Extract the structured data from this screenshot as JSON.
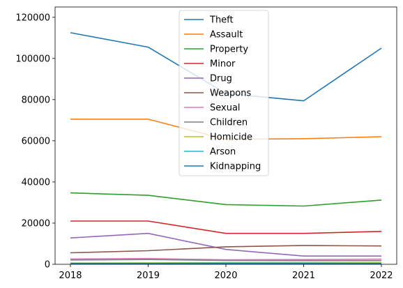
{
  "chart_data": {
    "type": "line",
    "title": "",
    "xlabel": "",
    "ylabel": "",
    "x": [
      "2018",
      "2019",
      "2020",
      "2021",
      "2022"
    ],
    "ylim": [
      0,
      125000
    ],
    "yticks": [
      0,
      20000,
      40000,
      60000,
      80000,
      100000,
      120000
    ],
    "ytick_labels": [
      "0",
      "20000",
      "40000",
      "60000",
      "80000",
      "100000",
      "120000"
    ],
    "grid": false,
    "legend_position": "upper-center",
    "series": [
      {
        "name": "Theft",
        "color": "#1f77b4",
        "values": [
          112500,
          105500,
          83000,
          79400,
          105000
        ]
      },
      {
        "name": "Assault",
        "color": "#ff7f0e",
        "values": [
          70500,
          70500,
          60700,
          61000,
          62000
        ]
      },
      {
        "name": "Property",
        "color": "#2ca02c",
        "values": [
          34700,
          33500,
          29000,
          28300,
          31200
        ]
      },
      {
        "name": "Minor",
        "color": "#d62728",
        "values": [
          21000,
          21000,
          15000,
          15000,
          16000
        ]
      },
      {
        "name": "Drug",
        "color": "#9467bd",
        "values": [
          12800,
          15000,
          7200,
          4000,
          4000
        ]
      },
      {
        "name": "Weapons",
        "color": "#8c564b",
        "values": [
          5600,
          6600,
          8500,
          9100,
          8900
        ]
      },
      {
        "name": "Sexual",
        "color": "#e377c2",
        "values": [
          2600,
          2800,
          2200,
          2300,
          2500
        ]
      },
      {
        "name": "Children",
        "color": "#7f7f7f",
        "values": [
          2100,
          2300,
          1900,
          1800,
          1800
        ]
      },
      {
        "name": "Homicide",
        "color": "#bcbd22",
        "values": [
          600,
          700,
          800,
          800,
          800
        ]
      },
      {
        "name": "Arson",
        "color": "#17becf",
        "values": [
          500,
          500,
          600,
          600,
          500
        ]
      },
      {
        "name": "Kidnapping",
        "color": "#1f77b4",
        "values": [
          300,
          300,
          300,
          300,
          300
        ]
      }
    ]
  }
}
